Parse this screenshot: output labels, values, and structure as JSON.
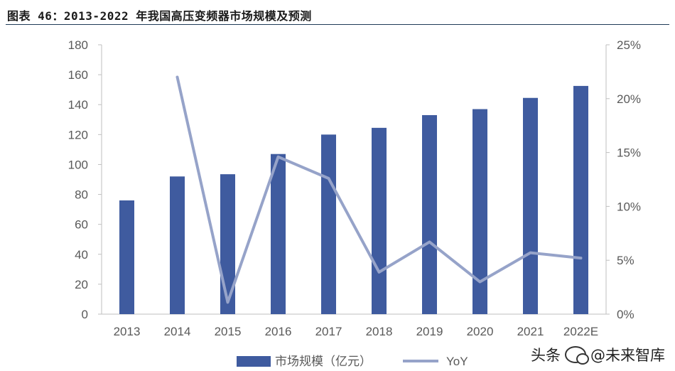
{
  "title": "图表 46：2013-2022 年我国高压变频器市场规模及预测",
  "chart_data": {
    "type": "bar",
    "categories": [
      "2013",
      "2014",
      "2015",
      "2016",
      "2017",
      "2018",
      "2019",
      "2020",
      "2021",
      "2022E"
    ],
    "series": [
      {
        "name": "市场规模（亿元）",
        "kind": "bar",
        "axis": "left",
        "color": "#3f5b9f",
        "values": [
          76,
          92,
          93.5,
          107,
          120,
          124.5,
          133,
          137,
          144.5,
          152.5
        ]
      },
      {
        "name": "YoY",
        "kind": "line",
        "axis": "right",
        "color": "#96a3c9",
        "values": [
          null,
          22.0,
          1.1,
          14.6,
          12.6,
          3.9,
          6.7,
          3.0,
          5.7,
          5.2
        ]
      }
    ],
    "y_left": {
      "min": 0,
      "max": 180,
      "ticks": [
        "0",
        "20",
        "40",
        "60",
        "80",
        "100",
        "120",
        "140",
        "160",
        "180"
      ]
    },
    "y_right": {
      "min": 0,
      "max": 25,
      "ticks": [
        "0%",
        "5%",
        "10%",
        "15%",
        "20%",
        "25%"
      ]
    },
    "grid": false,
    "legend_position": "bottom"
  },
  "watermark": {
    "prefix": "头条",
    "text": "@未来智库"
  }
}
